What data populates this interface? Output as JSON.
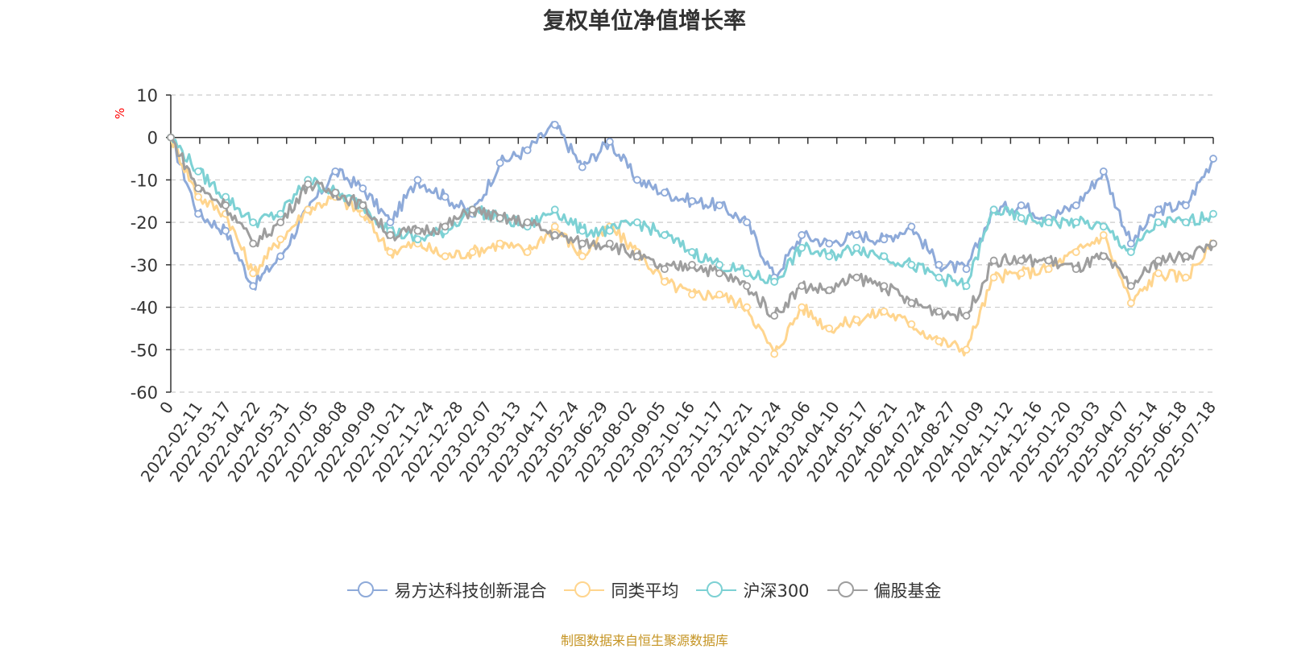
{
  "chart_data": {
    "type": "line",
    "title": "复权单位净值增长率",
    "y_unit": "%",
    "ylim": [
      -60,
      10
    ],
    "y_ticks": [
      10,
      0,
      -10,
      -20,
      -30,
      -40,
      -50,
      -60
    ],
    "x_tick_labels": [
      "0",
      "2022-02-11",
      "2022-03-17",
      "2022-04-22",
      "2022-05-31",
      "2022-07-05",
      "2022-08-08",
      "2022-09-09",
      "2022-10-21",
      "2022-11-24",
      "2022-12-28",
      "2023-02-07",
      "2023-03-13",
      "2023-04-17",
      "2023-05-24",
      "2023-06-29",
      "2023-08-02",
      "2023-09-05",
      "2023-10-16",
      "2023-11-17",
      "2023-12-21",
      "2024-01-24",
      "2024-03-06",
      "2024-04-10",
      "2024-05-17",
      "2024-06-21",
      "2024-07-24",
      "2024-08-27",
      "2024-10-09",
      "2024-11-12",
      "2024-12-16",
      "2025-01-20",
      "2025-03-03",
      "2025-04-07",
      "2025-05-14",
      "2025-06-18",
      "2025-07-18"
    ],
    "grid": true,
    "legend_position": "bottom",
    "series": [
      {
        "name": "易方达科技创新混合",
        "color": "#8eaad9",
        "values": [
          0,
          -18,
          -22,
          -35,
          -28,
          -17,
          -8,
          -12,
          -20,
          -10,
          -14,
          -18,
          -6,
          -3,
          3,
          -7,
          -1,
          -10,
          -13,
          -15,
          -16,
          -20,
          -33,
          -23,
          -25,
          -23,
          -24,
          -21,
          -30,
          -31,
          -17,
          -16,
          -19,
          -16,
          -8,
          -25,
          -17,
          -16,
          -5
        ]
      },
      {
        "name": "同类平均",
        "color": "#ffd58e",
        "values": [
          0,
          -14,
          -18,
          -32,
          -24,
          -17,
          -14,
          -18,
          -27,
          -25,
          -28,
          -27,
          -25,
          -27,
          -21,
          -28,
          -21,
          -27,
          -34,
          -37,
          -37,
          -40,
          -51,
          -40,
          -45,
          -43,
          -41,
          -44,
          -48,
          -50,
          -33,
          -32,
          -31,
          -27,
          -23,
          -39,
          -32,
          -33,
          -25
        ]
      },
      {
        "name": "沪深300",
        "color": "#7dd1d4",
        "values": [
          0,
          -8,
          -14,
          -20,
          -18,
          -10,
          -13,
          -16,
          -22,
          -24,
          -22,
          -17,
          -19,
          -21,
          -17,
          -22,
          -22,
          -20,
          -23,
          -27,
          -30,
          -32,
          -34,
          -26,
          -28,
          -26,
          -28,
          -30,
          -33,
          -35,
          -17,
          -19,
          -20,
          -20,
          -21,
          -27,
          -20,
          -20,
          -18
        ]
      },
      {
        "name": "偏股基金",
        "color": "#9e9e9e",
        "values": [
          0,
          -12,
          -16,
          -25,
          -20,
          -11,
          -13,
          -16,
          -23,
          -22,
          -21,
          -17,
          -19,
          -20,
          -23,
          -25,
          -25,
          -28,
          -31,
          -30,
          -32,
          -35,
          -42,
          -35,
          -36,
          -33,
          -35,
          -39,
          -41,
          -42,
          -29,
          -29,
          -29,
          -31,
          -28,
          -35,
          -29,
          -28,
          -25
        ]
      }
    ]
  },
  "source_note": "制图数据来自恒生聚源数据库"
}
